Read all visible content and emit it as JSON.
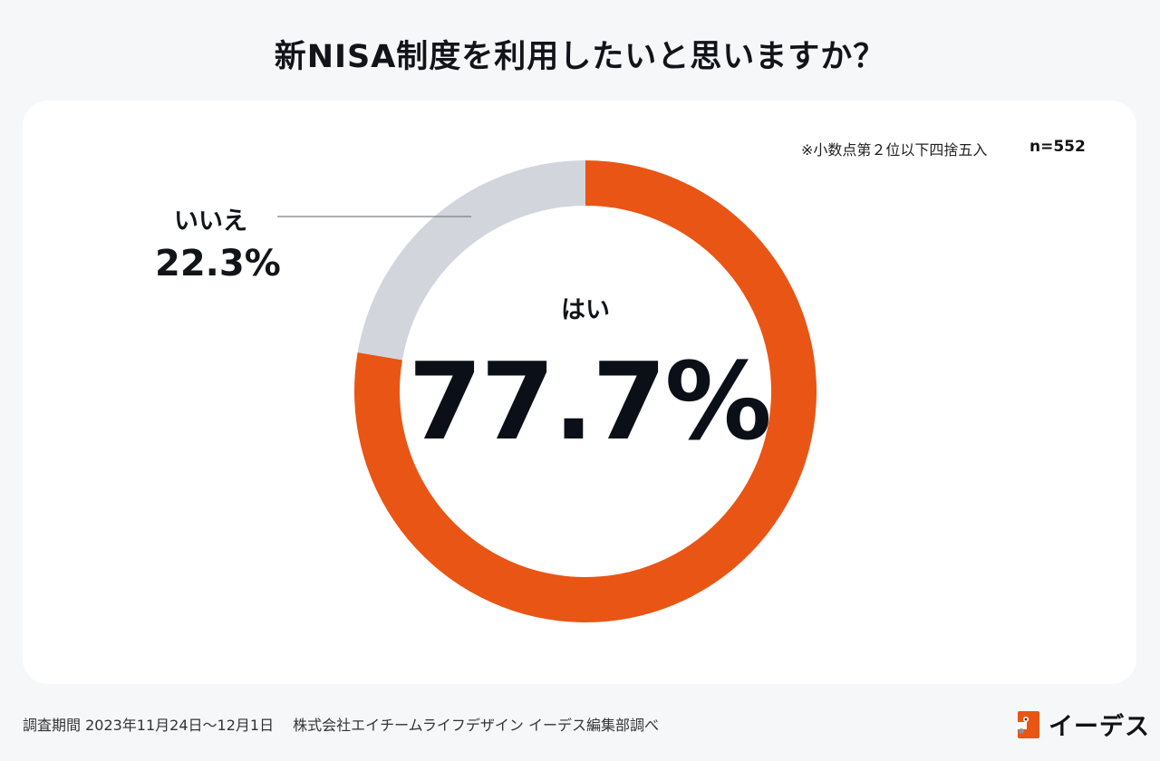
{
  "title": "新NISA制度を利用したいと思いますか？",
  "note": "※小数点第２位以下四捨五入",
  "sample": "n=552",
  "footer": "調査期間 2023年11月24日〜12月1日　 株式会社エイチームライフデザイン イーデス編集部調べ",
  "logo_text": "イーデス",
  "colors": {
    "yes": "#e95514",
    "no": "#d2d5dc",
    "leader": "#7a7f88",
    "logo": "#e95514"
  },
  "chart_data": {
    "type": "pie",
    "style": "donut",
    "title": "新NISA制度を利用したいと思いますか？",
    "categories": [
      "はい",
      "いいえ"
    ],
    "values": [
      77.7,
      22.3
    ],
    "value_labels": [
      "77.7%",
      "22.3%"
    ],
    "unit": "%"
  }
}
